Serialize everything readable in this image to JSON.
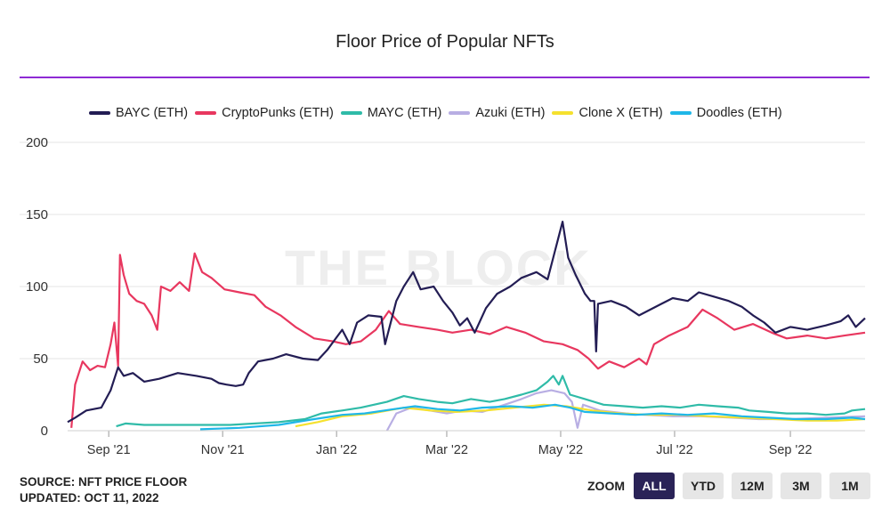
{
  "header": {
    "title": "Floor Price of Popular NFTs"
  },
  "watermark": "THE BLOCK",
  "footer": {
    "source": "SOURCE: NFT PRICE FLOOR",
    "updated": "UPDATED: OCT 11, 2022"
  },
  "zoom": {
    "label": "ZOOM",
    "buttons": [
      "ALL",
      "YTD",
      "12M",
      "3M",
      "1M"
    ],
    "active": "ALL"
  },
  "colors": {
    "accent_line": "#8e2bd4",
    "gridline": "#e6e6e6"
  },
  "chart_data": {
    "type": "line",
    "title": "Floor Price of Popular NFTs",
    "xlabel": "",
    "ylabel": "",
    "xlim": [
      "2021-08-10",
      "2022-10-11"
    ],
    "ylim": [
      0,
      200
    ],
    "yticks": [
      0,
      50,
      100,
      150,
      200
    ],
    "xticks": [
      {
        "date": "2021-09-01",
        "label": "Sep '21"
      },
      {
        "date": "2021-11-01",
        "label": "Nov '21"
      },
      {
        "date": "2022-01-01",
        "label": "Jan '22"
      },
      {
        "date": "2022-03-01",
        "label": "Mar '22"
      },
      {
        "date": "2022-05-01",
        "label": "May '22"
      },
      {
        "date": "2022-07-01",
        "label": "Jul '22"
      },
      {
        "date": "2022-09-01",
        "label": "Sep '22"
      }
    ],
    "grid": true,
    "legend_position": "top",
    "series": [
      {
        "name": "BAYC (ETH)",
        "color": "#231d54",
        "points": [
          [
            "2021-08-10",
            6
          ],
          [
            "2021-08-14",
            9
          ],
          [
            "2021-08-20",
            14
          ],
          [
            "2021-08-28",
            16
          ],
          [
            "2021-09-02",
            28
          ],
          [
            "2021-09-06",
            44
          ],
          [
            "2021-09-09",
            38
          ],
          [
            "2021-09-14",
            40
          ],
          [
            "2021-09-20",
            34
          ],
          [
            "2021-09-28",
            36
          ],
          [
            "2021-10-08",
            40
          ],
          [
            "2021-10-18",
            38
          ],
          [
            "2021-10-26",
            36
          ],
          [
            "2021-10-30",
            33
          ],
          [
            "2021-11-03",
            32
          ],
          [
            "2021-11-08",
            31
          ],
          [
            "2021-11-12",
            32
          ],
          [
            "2021-11-15",
            40
          ],
          [
            "2021-11-20",
            48
          ],
          [
            "2021-11-28",
            50
          ],
          [
            "2021-12-05",
            53
          ],
          [
            "2021-12-14",
            50
          ],
          [
            "2021-12-22",
            49
          ],
          [
            "2021-12-27",
            56
          ],
          [
            "2021-12-31",
            63
          ],
          [
            "2022-01-04",
            70
          ],
          [
            "2022-01-08",
            60
          ],
          [
            "2022-01-12",
            75
          ],
          [
            "2022-01-18",
            80
          ],
          [
            "2022-01-25",
            79
          ],
          [
            "2022-01-27",
            60
          ],
          [
            "2022-02-02",
            90
          ],
          [
            "2022-02-06",
            100
          ],
          [
            "2022-02-11",
            110
          ],
          [
            "2022-02-15",
            98
          ],
          [
            "2022-02-22",
            100
          ],
          [
            "2022-02-27",
            90
          ],
          [
            "2022-03-04",
            82
          ],
          [
            "2022-03-08",
            73
          ],
          [
            "2022-03-12",
            78
          ],
          [
            "2022-03-16",
            68
          ],
          [
            "2022-03-22",
            85
          ],
          [
            "2022-03-28",
            95
          ],
          [
            "2022-04-04",
            100
          ],
          [
            "2022-04-10",
            106
          ],
          [
            "2022-04-18",
            110
          ],
          [
            "2022-04-24",
            105
          ],
          [
            "2022-04-27",
            120
          ],
          [
            "2022-04-30",
            135
          ],
          [
            "2022-05-02",
            145
          ],
          [
            "2022-05-05",
            120
          ],
          [
            "2022-05-09",
            108
          ],
          [
            "2022-05-14",
            95
          ],
          [
            "2022-05-17",
            90
          ],
          [
            "2022-05-19",
            90
          ],
          [
            "2022-05-20",
            55
          ],
          [
            "2022-05-21",
            88
          ],
          [
            "2022-05-28",
            90
          ],
          [
            "2022-06-05",
            86
          ],
          [
            "2022-06-12",
            80
          ],
          [
            "2022-06-18",
            84
          ],
          [
            "2022-06-24",
            88
          ],
          [
            "2022-06-30",
            92
          ],
          [
            "2022-07-08",
            90
          ],
          [
            "2022-07-14",
            96
          ],
          [
            "2022-07-22",
            93
          ],
          [
            "2022-07-30",
            90
          ],
          [
            "2022-08-06",
            86
          ],
          [
            "2022-08-12",
            80
          ],
          [
            "2022-08-18",
            75
          ],
          [
            "2022-08-24",
            68
          ],
          [
            "2022-09-01",
            72
          ],
          [
            "2022-09-10",
            70
          ],
          [
            "2022-09-20",
            73
          ],
          [
            "2022-09-28",
            76
          ],
          [
            "2022-10-02",
            80
          ],
          [
            "2022-10-06",
            72
          ],
          [
            "2022-10-11",
            78
          ]
        ]
      },
      {
        "name": "CryptoPunks (ETH)",
        "color": "#e8375f",
        "points": [
          [
            "2021-08-12",
            2
          ],
          [
            "2021-08-14",
            32
          ],
          [
            "2021-08-18",
            48
          ],
          [
            "2021-08-22",
            42
          ],
          [
            "2021-08-26",
            45
          ],
          [
            "2021-08-30",
            44
          ],
          [
            "2021-09-02",
            60
          ],
          [
            "2021-09-04",
            75
          ],
          [
            "2021-09-06",
            45
          ],
          [
            "2021-09-07",
            122
          ],
          [
            "2021-09-09",
            108
          ],
          [
            "2021-09-12",
            95
          ],
          [
            "2021-09-16",
            90
          ],
          [
            "2021-09-20",
            88
          ],
          [
            "2021-09-24",
            80
          ],
          [
            "2021-09-27",
            70
          ],
          [
            "2021-09-29",
            100
          ],
          [
            "2021-10-04",
            97
          ],
          [
            "2021-10-09",
            103
          ],
          [
            "2021-10-14",
            97
          ],
          [
            "2021-10-17",
            123
          ],
          [
            "2021-10-21",
            110
          ],
          [
            "2021-10-26",
            106
          ],
          [
            "2021-11-02",
            98
          ],
          [
            "2021-11-10",
            96
          ],
          [
            "2021-11-18",
            94
          ],
          [
            "2021-11-24",
            86
          ],
          [
            "2021-12-02",
            80
          ],
          [
            "2021-12-10",
            72
          ],
          [
            "2021-12-20",
            64
          ],
          [
            "2021-12-30",
            62
          ],
          [
            "2022-01-06",
            60
          ],
          [
            "2022-01-14",
            62
          ],
          [
            "2022-01-22",
            70
          ],
          [
            "2022-01-29",
            83
          ],
          [
            "2022-02-04",
            74
          ],
          [
            "2022-02-14",
            72
          ],
          [
            "2022-02-24",
            70
          ],
          [
            "2022-03-04",
            68
          ],
          [
            "2022-03-14",
            70
          ],
          [
            "2022-03-24",
            67
          ],
          [
            "2022-04-02",
            72
          ],
          [
            "2022-04-12",
            68
          ],
          [
            "2022-04-22",
            62
          ],
          [
            "2022-05-02",
            60
          ],
          [
            "2022-05-10",
            56
          ],
          [
            "2022-05-16",
            50
          ],
          [
            "2022-05-21",
            43
          ],
          [
            "2022-05-27",
            48
          ],
          [
            "2022-06-04",
            44
          ],
          [
            "2022-06-12",
            50
          ],
          [
            "2022-06-16",
            46
          ],
          [
            "2022-06-20",
            60
          ],
          [
            "2022-06-28",
            66
          ],
          [
            "2022-07-08",
            72
          ],
          [
            "2022-07-16",
            84
          ],
          [
            "2022-07-24",
            78
          ],
          [
            "2022-08-02",
            70
          ],
          [
            "2022-08-12",
            74
          ],
          [
            "2022-08-22",
            68
          ],
          [
            "2022-08-30",
            64
          ],
          [
            "2022-09-10",
            66
          ],
          [
            "2022-09-20",
            64
          ],
          [
            "2022-09-30",
            66
          ],
          [
            "2022-10-11",
            68
          ]
        ]
      },
      {
        "name": "MAYC (ETH)",
        "color": "#2fbba8",
        "points": [
          [
            "2021-09-05",
            3
          ],
          [
            "2021-09-10",
            5
          ],
          [
            "2021-09-20",
            4
          ],
          [
            "2021-10-10",
            4
          ],
          [
            "2021-11-05",
            4
          ],
          [
            "2021-12-01",
            6
          ],
          [
            "2021-12-15",
            8
          ],
          [
            "2021-12-24",
            12
          ],
          [
            "2022-01-04",
            14
          ],
          [
            "2022-01-14",
            16
          ],
          [
            "2022-01-28",
            20
          ],
          [
            "2022-02-06",
            24
          ],
          [
            "2022-02-14",
            22
          ],
          [
            "2022-02-24",
            20
          ],
          [
            "2022-03-04",
            19
          ],
          [
            "2022-03-14",
            22
          ],
          [
            "2022-03-24",
            20
          ],
          [
            "2022-04-01",
            22
          ],
          [
            "2022-04-10",
            25
          ],
          [
            "2022-04-18",
            28
          ],
          [
            "2022-04-24",
            34
          ],
          [
            "2022-04-27",
            38
          ],
          [
            "2022-04-30",
            32
          ],
          [
            "2022-05-02",
            38
          ],
          [
            "2022-05-06",
            25
          ],
          [
            "2022-05-14",
            22
          ],
          [
            "2022-05-24",
            18
          ],
          [
            "2022-06-04",
            17
          ],
          [
            "2022-06-14",
            16
          ],
          [
            "2022-06-24",
            17
          ],
          [
            "2022-07-04",
            16
          ],
          [
            "2022-07-14",
            18
          ],
          [
            "2022-07-24",
            17
          ],
          [
            "2022-08-04",
            16
          ],
          [
            "2022-08-10",
            14
          ],
          [
            "2022-08-20",
            13
          ],
          [
            "2022-08-30",
            12
          ],
          [
            "2022-09-10",
            12
          ],
          [
            "2022-09-20",
            11
          ],
          [
            "2022-09-30",
            12
          ],
          [
            "2022-10-04",
            14
          ],
          [
            "2022-10-11",
            15
          ]
        ]
      },
      {
        "name": "Azuki (ETH)",
        "color": "#b8aee3",
        "points": [
          [
            "2022-01-28",
            0
          ],
          [
            "2022-02-02",
            12
          ],
          [
            "2022-02-10",
            16
          ],
          [
            "2022-02-20",
            14
          ],
          [
            "2022-03-01",
            12
          ],
          [
            "2022-03-10",
            14
          ],
          [
            "2022-03-20",
            13
          ],
          [
            "2022-04-01",
            18
          ],
          [
            "2022-04-10",
            22
          ],
          [
            "2022-04-18",
            26
          ],
          [
            "2022-04-26",
            28
          ],
          [
            "2022-05-03",
            26
          ],
          [
            "2022-05-07",
            20
          ],
          [
            "2022-05-10",
            2
          ],
          [
            "2022-05-13",
            18
          ],
          [
            "2022-05-22",
            14
          ],
          [
            "2022-06-05",
            12
          ],
          [
            "2022-06-15",
            11
          ],
          [
            "2022-06-30",
            10
          ],
          [
            "2022-07-15",
            10
          ],
          [
            "2022-08-01",
            9
          ],
          [
            "2022-08-15",
            8
          ],
          [
            "2022-09-01",
            8
          ],
          [
            "2022-09-20",
            9
          ],
          [
            "2022-10-11",
            10
          ]
        ]
      },
      {
        "name": "Clone X (ETH)",
        "color": "#f5e12e",
        "points": [
          [
            "2021-12-10",
            3
          ],
          [
            "2021-12-22",
            6
          ],
          [
            "2022-01-04",
            10
          ],
          [
            "2022-01-20",
            12
          ],
          [
            "2022-02-06",
            16
          ],
          [
            "2022-02-20",
            14
          ],
          [
            "2022-03-06",
            13
          ],
          [
            "2022-03-22",
            14
          ],
          [
            "2022-04-06",
            16
          ],
          [
            "2022-04-22",
            18
          ],
          [
            "2022-05-04",
            17
          ],
          [
            "2022-05-18",
            14
          ],
          [
            "2022-06-02",
            12
          ],
          [
            "2022-06-18",
            11
          ],
          [
            "2022-07-04",
            11
          ],
          [
            "2022-07-20",
            10
          ],
          [
            "2022-08-06",
            9
          ],
          [
            "2022-08-24",
            8
          ],
          [
            "2022-09-10",
            7
          ],
          [
            "2022-09-26",
            7
          ],
          [
            "2022-10-11",
            8
          ]
        ]
      },
      {
        "name": "Doodles (ETH)",
        "color": "#1fb7e8",
        "points": [
          [
            "2021-10-20",
            1
          ],
          [
            "2021-11-10",
            2
          ],
          [
            "2021-12-01",
            4
          ],
          [
            "2021-12-20",
            8
          ],
          [
            "2022-01-04",
            11
          ],
          [
            "2022-01-16",
            12
          ],
          [
            "2022-02-01",
            15
          ],
          [
            "2022-02-12",
            17
          ],
          [
            "2022-02-24",
            15
          ],
          [
            "2022-03-08",
            14
          ],
          [
            "2022-03-20",
            16
          ],
          [
            "2022-04-04",
            17
          ],
          [
            "2022-04-16",
            16
          ],
          [
            "2022-04-28",
            18
          ],
          [
            "2022-05-06",
            16
          ],
          [
            "2022-05-14",
            13
          ],
          [
            "2022-05-28",
            12
          ],
          [
            "2022-06-10",
            11
          ],
          [
            "2022-06-24",
            12
          ],
          [
            "2022-07-08",
            11
          ],
          [
            "2022-07-22",
            12
          ],
          [
            "2022-08-06",
            10
          ],
          [
            "2022-08-20",
            9
          ],
          [
            "2022-09-04",
            8
          ],
          [
            "2022-09-20",
            8
          ],
          [
            "2022-10-04",
            9
          ],
          [
            "2022-10-11",
            8
          ]
        ]
      }
    ]
  }
}
